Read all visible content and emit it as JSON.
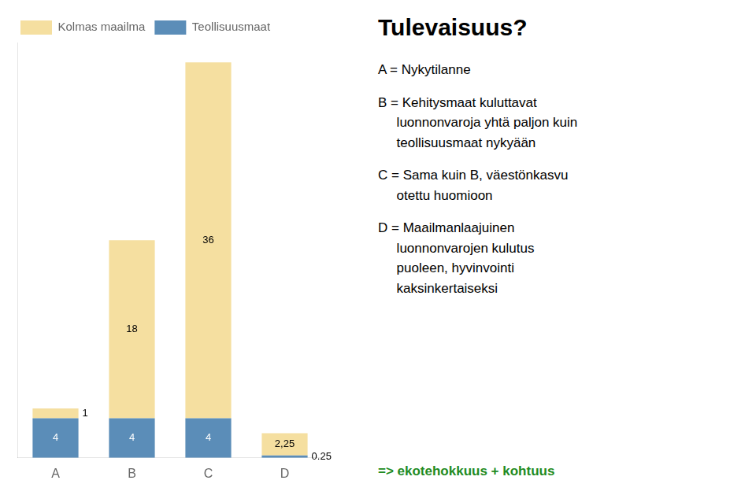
{
  "chart_data": {
    "type": "bar",
    "title": "Tulevaisuus?",
    "categories": [
      "A",
      "B",
      "C",
      "D"
    ],
    "series": [
      {
        "name": "Teollisuusmaat",
        "color": "#5B8DB8",
        "values": [
          4,
          4,
          4,
          0.25
        ]
      },
      {
        "name": "Kolmas maailma",
        "color": "#F5DFA0",
        "values": [
          1,
          18,
          36,
          2.25
        ],
        "value_labels": [
          "1",
          "18",
          "36",
          "2,25"
        ]
      }
    ],
    "stacked": true,
    "ylim": [
      0,
      42
    ],
    "grid": false,
    "legend": "top",
    "data_labels": true,
    "tick_labels": "x",
    "annotations": [
      {
        "text": "A = Nykytilanne"
      },
      {
        "text": "B = Kehitysmaat kuluttavat\n     luonnonvaroja yhtä paljon kuin\n     teollisuusmaat nykyään"
      },
      {
        "text": "C = Sama kuin B, väestönkasvu\n     otettu huomioon"
      },
      {
        "text": "D = Maailmanlaajuinen\n     luonnonvarojen kulutus\n     puoleen, hyvinvointi\n     kaksinkertaiseksi"
      },
      {
        "text": "=> ekotehokkuus + kohtuus",
        "color": "#228B22"
      }
    ]
  }
}
